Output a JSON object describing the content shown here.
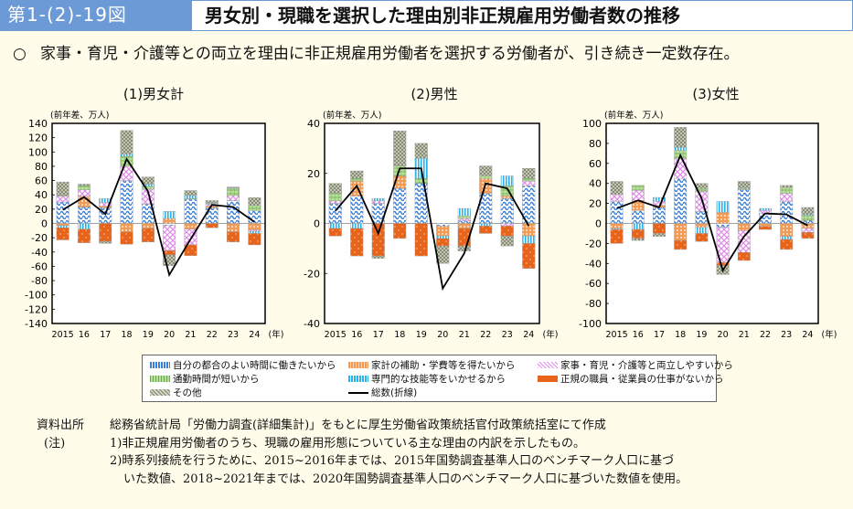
{
  "header": {
    "figure_number": "第1-(2)-19図",
    "title": "男女別・現職を選択した理由別非正規雇用労働者数の推移"
  },
  "summary": {
    "bullet": "○",
    "text": "家事・育児・介護等との両立を理由に非正規雇用労働者を選択する労働者が、引き続き一定数存在。"
  },
  "legend": [
    {
      "key": "jibun",
      "label": "自分の都合のよい時間に働きたいから",
      "color": "#3b7fd6"
    },
    {
      "key": "kakei",
      "label": "家計の補助・学費等を得たいから",
      "color": "#f39a55"
    },
    {
      "key": "kaji",
      "label": "家事・育児・介護等と両立しやすいから",
      "color": "#e08ee8"
    },
    {
      "key": "tsukin",
      "label": "通勤時間が短いから",
      "color": "#8cc66a"
    },
    {
      "key": "senmon",
      "label": "専門的な技能等をいかせるから",
      "color": "#29b3e8"
    },
    {
      "key": "seiki",
      "label": "正規の職員・従業員の仕事がないから",
      "color": "#e8641b"
    },
    {
      "key": "sonota",
      "label": "その他",
      "color": "#8a8f78"
    },
    {
      "key": "total",
      "label": "総数(折線)",
      "color": "#000000"
    }
  ],
  "chart_data": [
    {
      "type": "bar",
      "stacked": true,
      "title": "(1)男女計",
      "ylabel": "(前年差、万人)",
      "xlabel": "(年)",
      "categories": [
        "2015",
        "16",
        "17",
        "18",
        "19",
        "20",
        "21",
        "22",
        "23",
        "24"
      ],
      "ylim": [
        -140,
        140
      ],
      "yticks": [
        140,
        120,
        100,
        80,
        60,
        40,
        20,
        0,
        -20,
        -40,
        -60,
        -80,
        -100,
        -120,
        -140
      ],
      "series": [
        {
          "name": "自分の都合のよい時間に働きたいから",
          "key": "jibun",
          "values": [
            30,
            23,
            22,
            60,
            27,
            -3,
            34,
            22,
            32,
            18
          ]
        },
        {
          "name": "家計の補助・学費等を得たいから",
          "key": "kakei",
          "values": [
            -3,
            15,
            2,
            -12,
            -7,
            7,
            -8,
            2,
            -12,
            -9
          ]
        },
        {
          "name": "家事・育児・介護等と両立しやすいから",
          "key": "kaji",
          "values": [
            8,
            9,
            5,
            20,
            21,
            -35,
            -22,
            3,
            7,
            -2
          ]
        },
        {
          "name": "通勤時間が短いから",
          "key": "tsukin",
          "values": [
            1,
            6,
            0,
            14,
            4,
            0,
            1,
            1,
            10,
            7
          ]
        },
        {
          "name": "専門的な技能等をいかせるから",
          "key": "senmon",
          "values": [
            -3,
            -8,
            6,
            3,
            3,
            10,
            4,
            1,
            1,
            -3
          ]
        },
        {
          "name": "正規の職員・従業員の仕事がないから",
          "key": "seiki",
          "values": [
            -17,
            -19,
            -25,
            -17,
            -19,
            -6,
            -15,
            -6,
            -14,
            -16
          ]
        },
        {
          "name": "その他",
          "key": "sonota",
          "values": [
            19,
            2,
            -3,
            33,
            10,
            -15,
            7,
            3,
            1,
            11
          ]
        }
      ],
      "line": {
        "name": "総数(折線)",
        "values": [
          19,
          37,
          13,
          90,
          45,
          -72,
          -22,
          26,
          23,
          2
        ]
      }
    },
    {
      "type": "bar",
      "stacked": true,
      "title": "(2)男性",
      "ylabel": "(前年差、万人)",
      "xlabel": "(年)",
      "categories": [
        "2015",
        "16",
        "17",
        "18",
        "19",
        "20",
        "21",
        "22",
        "23",
        "24"
      ],
      "ylim": [
        -40,
        40
      ],
      "yticks": [
        40,
        20,
        0,
        -20,
        -40
      ],
      "series": [
        {
          "name": "自分の都合のよい時間に働きたいから",
          "key": "jibun",
          "values": [
            8,
            11,
            8,
            14,
            16,
            -1,
            1,
            12,
            10,
            15
          ]
        },
        {
          "name": "家計の補助・学費等を得たいから",
          "key": "kakei",
          "values": [
            0,
            6,
            0,
            5,
            0,
            -4,
            -2,
            6,
            1,
            -5
          ]
        },
        {
          "name": "家事・育児・介護等と両立しやすいから",
          "key": "kaji",
          "values": [
            1,
            0,
            1,
            0,
            0,
            0,
            1,
            0,
            -1,
            2
          ]
        },
        {
          "name": "通勤時間が短いから",
          "key": "tsukin",
          "values": [
            3,
            1,
            0,
            4,
            2,
            0,
            1,
            1,
            4,
            1
          ]
        },
        {
          "name": "専門的な技能等をいかせるから",
          "key": "senmon",
          "values": [
            -2,
            -2,
            1,
            0,
            8,
            -1,
            3,
            -1,
            4,
            -3
          ]
        },
        {
          "name": "正規の職員・従業員の仕事がないから",
          "key": "seiki",
          "values": [
            -3,
            -11,
            -13,
            -6,
            -13,
            -3,
            -7,
            -3,
            -4,
            -10
          ]
        },
        {
          "name": "その他",
          "key": "sonota",
          "values": [
            4,
            3,
            -1,
            14,
            6,
            -7,
            -2,
            4,
            -4,
            4
          ]
        }
      ],
      "line": {
        "name": "総数(折線)",
        "values": [
          5,
          15,
          -4,
          22,
          22,
          -26,
          -12,
          16,
          14,
          -1
        ]
      }
    },
    {
      "type": "bar",
      "stacked": true,
      "title": "(3)女性",
      "ylabel": "(前年差、万人)",
      "xlabel": "(年)",
      "categories": [
        "2015",
        "16",
        "17",
        "18",
        "19",
        "20",
        "21",
        "22",
        "23",
        "24"
      ],
      "ylim": [
        -100,
        100
      ],
      "yticks": [
        100,
        80,
        60,
        40,
        20,
        0,
        -20,
        -40,
        -60,
        -80,
        -100
      ],
      "series": [
        {
          "name": "自分の都合のよい時間に働きたいから",
          "key": "jibun",
          "values": [
            22,
            13,
            16,
            45,
            12,
            -4,
            34,
            10,
            22,
            3
          ]
        },
        {
          "name": "家計の補助・学費等を得たいから",
          "key": "kakei",
          "values": [
            -5,
            10,
            2,
            -17,
            -4,
            11,
            -7,
            -3,
            -13,
            -5
          ]
        },
        {
          "name": "家事・育児・介護等と両立しやすいから",
          "key": "kaji",
          "values": [
            7,
            10,
            4,
            20,
            20,
            -35,
            -22,
            3,
            8,
            -4
          ]
        },
        {
          "name": "通勤時間が短いから",
          "key": "tsukin",
          "values": [
            0,
            5,
            0,
            8,
            3,
            0,
            1,
            0,
            6,
            5
          ]
        },
        {
          "name": "専門的な技能等をいかせるから",
          "key": "senmon",
          "values": [
            -1,
            -6,
            4,
            3,
            -6,
            11,
            0,
            2,
            -3,
            1
          ]
        },
        {
          "name": "正規の職員・従業員の仕事がないから",
          "key": "seiki",
          "values": [
            -14,
            -9,
            -10,
            -9,
            -8,
            -3,
            -8,
            -3,
            -10,
            -6
          ]
        },
        {
          "name": "その他",
          "key": "sonota",
          "values": [
            13,
            -2,
            -3,
            20,
            5,
            -9,
            7,
            0,
            2,
            7
          ]
        }
      ],
      "line": {
        "name": "総数(折線)",
        "values": [
          15,
          23,
          16,
          68,
          25,
          -47,
          -13,
          10,
          9,
          -2
        ]
      }
    }
  ],
  "notes": {
    "source_label": "資料出所",
    "source_text": "総務省統計局「労働力調査(詳細集計)」をもとに厚生労働省政策統括官付政策統括室にて作成",
    "note_label": "(注)",
    "note1": "1)非正規雇用労働者のうち、現職の雇用形態についている主な理由の内訳を示したもの。",
    "note2a": "2)時系列接続を行うために、2015~2016年までは、2015年国勢調査基準人口のベンチマーク人口に基づ",
    "note2b": "いた数値、2018~2021年までは、2020年国勢調査基準人口のベンチマーク人口に基づいた数値を使用。"
  }
}
